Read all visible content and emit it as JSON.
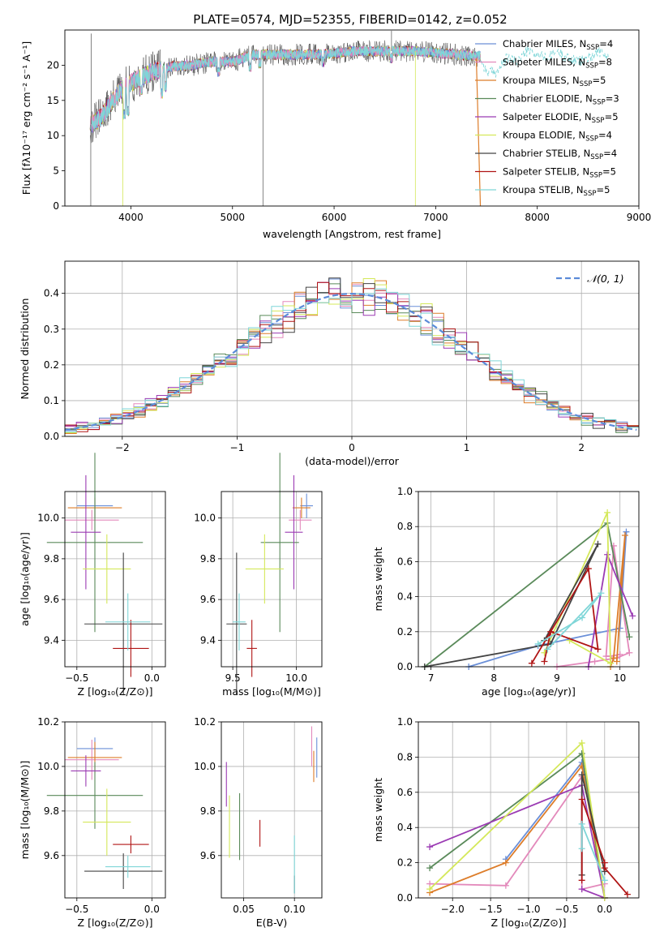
{
  "figure": {
    "title": "PLATE=0574, MJD=52355, FIBERID=0142, z=0.052"
  },
  "palette": {
    "Chabrier MILES": "#6a8fd8",
    "Salpeter MILES": "#e389bb",
    "Kroupa MILES": "#dd7d2a",
    "Chabrier ELODIE": "#5a8a5a",
    "Salpeter ELODIE": "#9b3bb3",
    "Kroupa ELODIE": "#d4e85a",
    "Chabrier STELIB": "#444444",
    "Salpeter STELIB": "#b01515",
    "Kroupa STELIB": "#7fd6d8",
    "grid": "#b0b0b0",
    "gaussian": "#5b8bd8"
  },
  "chart_data": [
    {
      "id": "spectrum",
      "type": "line",
      "title": "PLATE=0574, MJD=52355, FIBERID=0142, z=0.052",
      "xlabel": "wavelength [Angstrom, rest frame]",
      "ylabel": "Flux [fλ10⁻¹⁷ erg cm⁻² s⁻¹ A⁻¹]",
      "xlim": [
        3350,
        9000
      ],
      "ylim": [
        0,
        25
      ],
      "xticks": [
        4000,
        5000,
        6000,
        7000,
        8000,
        9000
      ],
      "yticks": [
        0,
        5,
        10,
        15,
        20
      ],
      "grid": false,
      "legend_position": "right",
      "legend": [
        {
          "label": "Chabrier MILES",
          "nssp": "4"
        },
        {
          "label": "Salpeter MILES",
          "nssp": "8"
        },
        {
          "label": "Kroupa MILES",
          "nssp": "5"
        },
        {
          "label": "Chabrier ELODIE",
          "nssp": "3"
        },
        {
          "label": "Salpeter ELODIE",
          "nssp": "5"
        },
        {
          "label": "Kroupa ELODIE",
          "nssp": "4"
        },
        {
          "label": "Chabrier STELIB",
          "nssp": "4"
        },
        {
          "label": "Salpeter STELIB",
          "nssp": "5"
        },
        {
          "label": "Kroupa STELIB",
          "nssp": "5"
        }
      ],
      "continuum": [
        [
          3600,
          11.5
        ],
        [
          3700,
          12.5
        ],
        [
          3800,
          14.5
        ],
        [
          3900,
          16.5
        ],
        [
          4000,
          17.5
        ],
        [
          4200,
          19.0
        ],
        [
          4400,
          19.8
        ],
        [
          4600,
          20.0
        ],
        [
          4800,
          20.5
        ],
        [
          5000,
          20.5
        ],
        [
          5200,
          21.5
        ],
        [
          5400,
          21.5
        ],
        [
          5600,
          21.5
        ],
        [
          5800,
          21.5
        ],
        [
          6000,
          21.7
        ],
        [
          6200,
          22.0
        ],
        [
          6400,
          22.0
        ],
        [
          6600,
          22.0
        ],
        [
          6800,
          22.0
        ],
        [
          7000,
          21.8
        ],
        [
          7200,
          21.5
        ],
        [
          7400,
          21.3
        ]
      ],
      "absorption_features": [
        [
          3934,
          13.0
        ],
        [
          3969,
          13.5
        ],
        [
          4102,
          16.5
        ],
        [
          4304,
          16.0
        ],
        [
          4340,
          17.0
        ],
        [
          4861,
          19.0
        ],
        [
          5175,
          19.8
        ],
        [
          5270,
          20.3
        ],
        [
          5890,
          20.5
        ],
        [
          6563,
          21.0
        ]
      ],
      "spikes": [
        [
          3605,
          0
        ],
        [
          3610,
          24.5
        ],
        [
          5300,
          0
        ],
        [
          6565,
          24.9
        ],
        [
          6800,
          0
        ],
        [
          3920,
          0
        ]
      ],
      "tail": [
        [
          7440,
          21
        ],
        [
          7500,
          19
        ],
        [
          7600,
          19
        ],
        [
          7700,
          21
        ],
        [
          7800,
          20.5
        ],
        [
          7900,
          22
        ],
        [
          8000,
          21.5
        ],
        [
          8100,
          21
        ],
        [
          8200,
          22
        ],
        [
          8300,
          21
        ],
        [
          8400,
          20.5
        ],
        [
          8500,
          21
        ],
        [
          8600,
          22
        ],
        [
          8700,
          21
        ]
      ]
    },
    {
      "id": "residuals",
      "type": "step",
      "xlabel": "(data-model)/error",
      "ylabel": "Normed distribution",
      "xlim": [
        -2.5,
        2.5
      ],
      "ylim": [
        0,
        0.49
      ],
      "xticks": [
        -2,
        -1,
        0,
        1,
        2
      ],
      "yticks": [
        0.0,
        0.1,
        0.2,
        0.3,
        0.4
      ],
      "grid": true,
      "legend_position": "top-right",
      "legend": [
        {
          "label": "𝒩(0, 1)"
        }
      ],
      "bin_width": 0.1
    },
    {
      "id": "age-vs-Z",
      "type": "errorbar",
      "xlabel": "Z [log₁₀(Z/Z⊙)]",
      "ylabel": "age  [log₁₀(age/yr)]",
      "xlim": [
        -0.58,
        0.09
      ],
      "ylim": [
        9.27,
        10.13
      ],
      "xticks": [
        -0.5,
        0.0
      ],
      "yticks": [
        9.4,
        9.6,
        9.8,
        10.0
      ],
      "grid": true,
      "points": [
        {
          "series": "Chabrier MILES",
          "x": -0.38,
          "xerr": 0.12,
          "y": 10.06,
          "yerr": 0.06
        },
        {
          "series": "Salpeter MILES",
          "x": -0.4,
          "xerr": 0.18,
          "y": 9.99,
          "yerr": 0.05
        },
        {
          "series": "Kroupa MILES",
          "x": -0.38,
          "xerr": 0.18,
          "y": 10.05,
          "yerr": 0.05
        },
        {
          "series": "Chabrier ELODIE",
          "x": -0.38,
          "xerr": 0.32,
          "y": 9.88,
          "yerr": 0.44
        },
        {
          "series": "Salpeter ELODIE",
          "x": -0.44,
          "xerr": 0.1,
          "y": 9.93,
          "yerr": 0.28
        },
        {
          "series": "Kroupa ELODIE",
          "x": -0.3,
          "xerr": 0.16,
          "y": 9.75,
          "yerr": 0.17
        },
        {
          "series": "Chabrier STELIB",
          "x": -0.19,
          "xerr": 0.26,
          "y": 9.48,
          "yerr": 0.35
        },
        {
          "series": "Salpeter STELIB",
          "x": -0.14,
          "xerr": 0.12,
          "y": 9.36,
          "yerr": 0.14
        },
        {
          "series": "Kroupa STELIB",
          "x": -0.16,
          "xerr": 0.15,
          "y": 9.49,
          "yerr": 0.14
        }
      ]
    },
    {
      "id": "age-vs-mass",
      "type": "errorbar",
      "xlabel": "mass [log₁₀(M/M⊙)]",
      "ylabel": "",
      "xlim": [
        9.41,
        10.2
      ],
      "ylim": [
        9.27,
        10.13
      ],
      "xticks": [
        9.5,
        10.0
      ],
      "yticks": [
        9.4,
        9.6,
        9.8,
        10.0
      ],
      "grid": true,
      "points": [
        {
          "series": "Chabrier MILES",
          "x": 10.08,
          "xerr": 0.05,
          "y": 10.06,
          "yerr": 0.06
        },
        {
          "series": "Salpeter MILES",
          "x": 10.03,
          "xerr": 0.09,
          "y": 9.99,
          "yerr": 0.05
        },
        {
          "series": "Kroupa MILES",
          "x": 10.04,
          "xerr": 0.07,
          "y": 10.05,
          "yerr": 0.05
        },
        {
          "series": "Chabrier ELODIE",
          "x": 9.87,
          "xerr": 0.15,
          "y": 9.88,
          "yerr": 0.44
        },
        {
          "series": "Salpeter ELODIE",
          "x": 9.98,
          "xerr": 0.07,
          "y": 9.93,
          "yerr": 0.28
        },
        {
          "series": "Kroupa ELODIE",
          "x": 9.75,
          "xerr": 0.15,
          "y": 9.75,
          "yerr": 0.17
        },
        {
          "series": "Chabrier STELIB",
          "x": 9.53,
          "xerr": 0.08,
          "y": 9.48,
          "yerr": 0.35
        },
        {
          "series": "Salpeter STELIB",
          "x": 9.65,
          "xerr": 0.04,
          "y": 9.36,
          "yerr": 0.14
        },
        {
          "series": "Kroupa STELIB",
          "x": 9.55,
          "xerr": 0.05,
          "y": 9.49,
          "yerr": 0.14
        }
      ]
    },
    {
      "id": "weight-vs-age",
      "type": "line",
      "xlabel": "age  [log₁₀(age/yr)]",
      "ylabel": "mass weight",
      "xlim": [
        6.8,
        10.3
      ],
      "ylim": [
        0,
        1
      ],
      "xticks": [
        7,
        8,
        9,
        10
      ],
      "yticks": [
        0.0,
        0.2,
        0.4,
        0.6,
        0.8,
        1.0
      ],
      "grid": true,
      "series": [
        {
          "name": "Chabrier MILES",
          "x": [
            7.6,
            8.7,
            10.0,
            10.1
          ],
          "y": [
            0.0,
            0.12,
            0.22,
            0.77
          ]
        },
        {
          "name": "Salpeter MILES",
          "x": [
            9.0,
            9.6,
            9.95,
            10.15,
            9.9,
            9.78,
            9.85,
            10.0
          ],
          "y": [
            0.0,
            0.03,
            0.05,
            0.08,
            0.69,
            0.06,
            0.06,
            0.07
          ]
        },
        {
          "name": "Kroupa MILES",
          "x": [
            9.85,
            9.9,
            10.08,
            9.95
          ],
          "y": [
            0.0,
            0.05,
            0.75,
            0.03
          ]
        },
        {
          "name": "Chabrier ELODIE",
          "x": [
            6.9,
            9.8,
            10.15
          ],
          "y": [
            0.0,
            0.82,
            0.17
          ]
        },
        {
          "name": "Salpeter ELODIE",
          "x": [
            9.5,
            9.8,
            10.2
          ],
          "y": [
            0.0,
            0.64,
            0.29
          ]
        },
        {
          "name": "Kroupa ELODIE",
          "x": [
            8.8,
            9.8,
            9.85,
            9.2
          ],
          "y": [
            0.08,
            0.88,
            0.02,
            0.15
          ]
        },
        {
          "name": "Chabrier STELIB",
          "x": [
            6.9,
            8.9,
            9.65,
            8.8
          ],
          "y": [
            0.0,
            0.13,
            0.7,
            0.15
          ]
        },
        {
          "name": "Salpeter STELIB",
          "x": [
            8.6,
            9.5,
            9.65,
            8.9,
            8.8
          ],
          "y": [
            0.02,
            0.56,
            0.1,
            0.2,
            0.03
          ]
        },
        {
          "name": "Kroupa STELIB",
          "x": [
            8.7,
            9.4,
            9.7,
            8.85
          ],
          "y": [
            0.13,
            0.28,
            0.42,
            0.1
          ]
        }
      ]
    },
    {
      "id": "mass-vs-Z",
      "type": "errorbar",
      "xlabel": "Z [log₁₀(Z/Z⊙)]",
      "ylabel": "mass [log₁₀(M/M⊙)]",
      "xlim": [
        -0.58,
        0.09
      ],
      "ylim": [
        9.41,
        10.2
      ],
      "xticks": [
        -0.5,
        0.0
      ],
      "yticks": [
        9.6,
        9.8,
        10.0,
        10.2
      ],
      "grid": true,
      "points": [
        {
          "series": "Chabrier MILES",
          "x": -0.38,
          "xerr": 0.12,
          "y": 10.08,
          "yerr": 0.05
        },
        {
          "series": "Salpeter MILES",
          "x": -0.4,
          "xerr": 0.18,
          "y": 10.03,
          "yerr": 0.09
        },
        {
          "series": "Kroupa MILES",
          "x": -0.38,
          "xerr": 0.18,
          "y": 10.04,
          "yerr": 0.07
        },
        {
          "series": "Chabrier ELODIE",
          "x": -0.38,
          "xerr": 0.32,
          "y": 9.87,
          "yerr": 0.15
        },
        {
          "series": "Salpeter ELODIE",
          "x": -0.44,
          "xerr": 0.1,
          "y": 9.98,
          "yerr": 0.07
        },
        {
          "series": "Kroupa ELODIE",
          "x": -0.3,
          "xerr": 0.16,
          "y": 9.75,
          "yerr": 0.15
        },
        {
          "series": "Chabrier STELIB",
          "x": -0.19,
          "xerr": 0.26,
          "y": 9.53,
          "yerr": 0.08
        },
        {
          "series": "Salpeter STELIB",
          "x": -0.14,
          "xerr": 0.12,
          "y": 9.65,
          "yerr": 0.04
        },
        {
          "series": "Kroupa STELIB",
          "x": -0.16,
          "xerr": 0.15,
          "y": 9.55,
          "yerr": 0.05
        }
      ]
    },
    {
      "id": "mass-vs-ebv",
      "type": "errorbar",
      "xlabel": "E(B-V)",
      "ylabel": "",
      "xlim": [
        0.028,
        0.127
      ],
      "ylim": [
        9.41,
        10.2
      ],
      "xticks": [
        0.05,
        0.1
      ],
      "yticks": [
        9.6,
        9.8,
        10.0,
        10.2
      ],
      "grid": true,
      "points": [
        {
          "series": "Chabrier MILES",
          "x": 0.122,
          "xerr": 0.0,
          "y": 10.04,
          "yerr": 0.09
        },
        {
          "series": "Salpeter MILES",
          "x": 0.117,
          "xerr": 0.0,
          "y": 10.09,
          "yerr": 0.09
        },
        {
          "series": "Kroupa MILES",
          "x": 0.119,
          "xerr": 0.0,
          "y": 10.0,
          "yerr": 0.07
        },
        {
          "series": "Chabrier ELODIE",
          "x": 0.046,
          "xerr": 0.0,
          "y": 9.73,
          "yerr": 0.15
        },
        {
          "series": "Salpeter ELODIE",
          "x": 0.033,
          "xerr": 0.0,
          "y": 9.92,
          "yerr": 0.1
        },
        {
          "series": "Kroupa ELODIE",
          "x": 0.036,
          "xerr": 0.0,
          "y": 9.73,
          "yerr": 0.14
        },
        {
          "series": "Chabrier STELIB",
          "x": 0.1,
          "xerr": 0.0,
          "y": 9.47,
          "yerr": 0.04
        },
        {
          "series": "Salpeter STELIB",
          "x": 0.066,
          "xerr": 0.0,
          "y": 9.7,
          "yerr": 0.06
        },
        {
          "series": "Kroupa STELIB",
          "x": 0.1,
          "xerr": 0.0,
          "y": 9.56,
          "yerr": 0.13
        }
      ]
    },
    {
      "id": "weight-vs-Z",
      "type": "line",
      "xlabel": "Z [log₁₀(Z/Z⊙)]",
      "ylabel": "mass weight",
      "xlim": [
        -2.45,
        0.45
      ],
      "ylim": [
        0,
        1
      ],
      "xticks": [
        -2.0,
        -1.5,
        -1.0,
        -0.5,
        0.0
      ],
      "yticks": [
        0.0,
        0.2,
        0.4,
        0.6,
        0.8,
        1.0
      ],
      "grid": true,
      "series": [
        {
          "name": "Chabrier MILES",
          "x": [
            -1.3,
            -0.3,
            0.0
          ],
          "y": [
            0.22,
            0.77,
            0.0
          ]
        },
        {
          "name": "Salpeter MILES",
          "x": [
            -2.3,
            -1.3,
            -0.3,
            -0.3,
            0.0
          ],
          "y": [
            0.08,
            0.07,
            0.69,
            0.05,
            0.08
          ]
        },
        {
          "name": "Kroupa MILES",
          "x": [
            -2.3,
            -1.3,
            -0.3,
            0.0
          ],
          "y": [
            0.03,
            0.2,
            0.75,
            0.0
          ]
        },
        {
          "name": "Chabrier ELODIE",
          "x": [
            -2.3,
            -0.3,
            0.0
          ],
          "y": [
            0.17,
            0.82,
            0.0
          ]
        },
        {
          "name": "Salpeter ELODIE",
          "x": [
            -2.3,
            -0.3,
            0.0,
            -0.3
          ],
          "y": [
            0.29,
            0.64,
            0.0,
            0.05
          ]
        },
        {
          "name": "Kroupa ELODIE",
          "x": [
            -2.3,
            -0.3,
            0.0
          ],
          "y": [
            0.05,
            0.88,
            0.0
          ]
        },
        {
          "name": "Chabrier STELIB",
          "x": [
            -0.3,
            -0.3,
            0.0
          ],
          "y": [
            0.13,
            0.7,
            0.15
          ]
        },
        {
          "name": "Salpeter STELIB",
          "x": [
            -0.3,
            -0.3,
            0.0,
            0.0,
            0.3
          ],
          "y": [
            0.1,
            0.56,
            0.2,
            0.17,
            0.02
          ]
        },
        {
          "name": "Kroupa STELIB",
          "x": [
            -0.3,
            -0.3,
            0.0
          ],
          "y": [
            0.28,
            0.42,
            0.1
          ]
        }
      ]
    }
  ]
}
